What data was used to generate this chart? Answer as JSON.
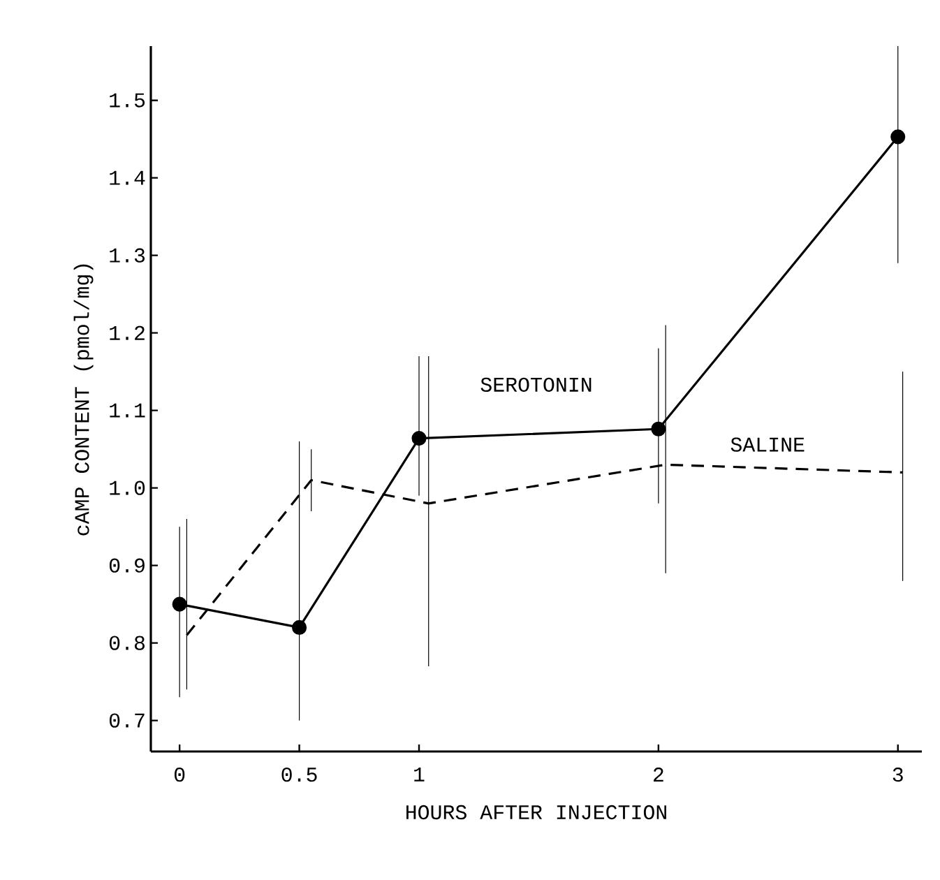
{
  "chart_data": {
    "type": "line",
    "xlabel": "HOURS AFTER INJECTION",
    "ylabel": "cAMP CONTENT  (pmol/mg)",
    "x": [
      0,
      0.5,
      1,
      2,
      3
    ],
    "xlim": [
      -0.12,
      3.1
    ],
    "xticks": [
      0,
      0.5,
      1,
      2,
      3
    ],
    "ylim": [
      0.66,
      1.57
    ],
    "yticks": [
      0.7,
      0.8,
      0.9,
      {
        "value": 1.0,
        "label": "1.0"
      },
      1.1,
      1.2,
      1.3,
      1.4,
      1.5
    ],
    "series": [
      {
        "name": "SEROTONIN",
        "color": "#000000",
        "marker": "circle",
        "line_style": "solid",
        "values": [
          0.85,
          0.82,
          1.064,
          1.076,
          1.453
        ],
        "errors": [
          [
            0.73,
            0.95
          ],
          [
            0.7,
            1.06
          ],
          [
            0.99,
            1.17
          ],
          [
            0.98,
            1.18
          ],
          [
            1.29,
            1.57
          ]
        ]
      },
      {
        "name": "SALINE",
        "x": [
          0.03,
          0.55,
          1.04,
          2.03,
          3.02
        ],
        "color": "#000000",
        "marker": "none",
        "line_style": "dashed",
        "values": [
          0.81,
          1.01,
          0.98,
          1.03,
          1.02
        ],
        "errors": [
          [
            0.74,
            0.96
          ],
          [
            0.97,
            1.05
          ],
          [
            0.77,
            1.17
          ],
          [
            0.89,
            1.21
          ],
          [
            0.88,
            1.15
          ]
        ]
      }
    ]
  }
}
